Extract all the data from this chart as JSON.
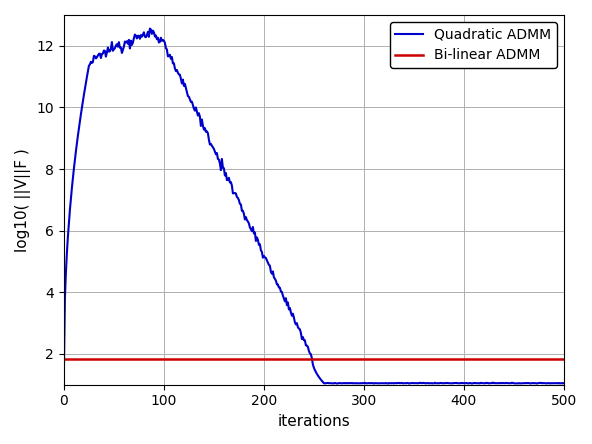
{
  "title": "",
  "xlabel": "iterations",
  "ylabel": "log10( ||V||F )",
  "xlim": [
    0,
    500
  ],
  "ylim": [
    1.0,
    13.0
  ],
  "yticks": [
    2,
    4,
    6,
    8,
    10,
    12
  ],
  "xticks": [
    0,
    100,
    200,
    300,
    400,
    500
  ],
  "blue_color": "#0000cc",
  "red_color": "#cc0000",
  "legend_blue": "Quadratic ADMM",
  "legend_red": "Bi-linear ADMM",
  "red_value": 1.82,
  "blue_peak": 12.45,
  "blue_peak_iter": 88,
  "blue_start": 1.48,
  "blue_flat_end": 1.05,
  "blue_rise_end_iter": 25,
  "blue_rise_end_val": 11.35,
  "blue_descent_start_iter": 100,
  "blue_descent_end_iter": 248,
  "blue_flat_start_iter": 260,
  "background_color": "#ffffff",
  "grid_color": "#b0b0b0",
  "linewidth_blue": 1.5,
  "linewidth_red": 1.8,
  "noise_amplitude": 0.07
}
